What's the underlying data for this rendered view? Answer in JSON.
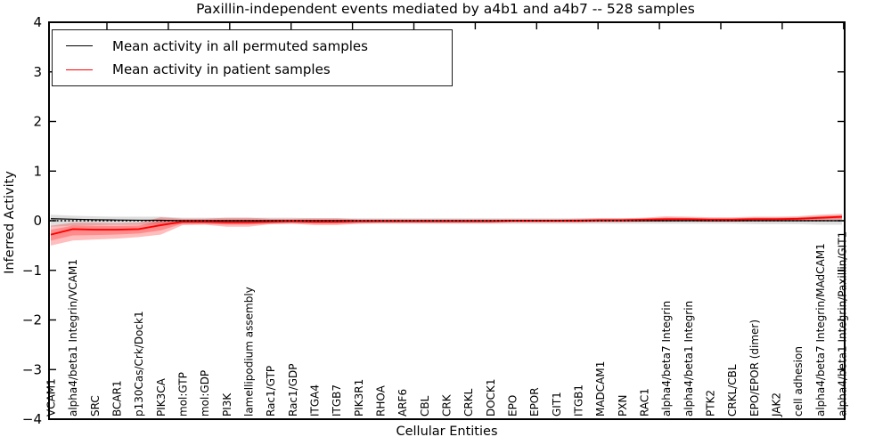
{
  "chart_data": {
    "type": "line",
    "title": "Paxillin-independent events mediated by a4b1 and a4b7 -- 528 samples",
    "xlabel": "Cellular Entities",
    "ylabel": "Inferred Activity",
    "ylim": [
      -4,
      4
    ],
    "grid": false,
    "legend_position": "upper left",
    "legend": [
      {
        "label": "Mean activity in all permuted samples",
        "color": "#000000"
      },
      {
        "label": "Mean activity in patient samples",
        "color": "#ff0000"
      }
    ],
    "colors": {
      "patient_line": "#ff0000",
      "patient_band_fill": "rgba(255,0,0,0.26)",
      "permuted_line": "#000000",
      "permuted_band_fill": "rgba(0,0,0,0.13)",
      "zero_reference_line": "#000000"
    },
    "yticks": [
      {
        "v": 4,
        "label": "4"
      },
      {
        "v": 3,
        "label": "3"
      },
      {
        "v": 2,
        "label": "2"
      },
      {
        "v": 1,
        "label": "1"
      },
      {
        "v": 0,
        "label": "0"
      },
      {
        "v": -1,
        "label": "−1"
      },
      {
        "v": -2,
        "label": "−2"
      },
      {
        "v": -3,
        "label": "−3"
      },
      {
        "v": -4,
        "label": "−4"
      }
    ],
    "categories": [
      "VCAM1",
      "alpha4/beta1 Integrin/VCAM1",
      "SRC",
      "BCAR1",
      "p130Cas/Crk/Dock1",
      "PIK3CA",
      "mol:GTP",
      "mol:GDP",
      "PI3K",
      "lamellipodium assembly",
      "Rac1/GTP",
      "Rac1/GDP",
      "ITGA4",
      "ITGB7",
      "PIK3R1",
      "RHOA",
      "ARF6",
      "CBL",
      "CRK",
      "CRKL",
      "DOCK1",
      "EPO",
      "EPOR",
      "GIT1",
      "ITGB1",
      "MADCAM1",
      "PXN",
      "RAC1",
      "alpha4/beta7 Integrin",
      "alpha4/beta1 Integrin",
      "PTK2",
      "CRKL/CBL",
      "EPO/EPOR (dimer)",
      "JAK2",
      "cell adhesion",
      "alpha4/beta7 Integrin/MAdCAM1",
      "alpha4/beta1 Integrin/Paxillin/GIT1"
    ],
    "series": [
      {
        "name": "Mean activity in patient samples",
        "values": [
          -0.28,
          -0.17,
          -0.18,
          -0.18,
          -0.17,
          -0.09,
          -0.02,
          -0.02,
          -0.03,
          -0.03,
          -0.02,
          -0.01,
          -0.02,
          -0.02,
          -0.01,
          -0.01,
          -0.01,
          -0.01,
          -0.01,
          -0.01,
          -0.01,
          0,
          0,
          0,
          0,
          0.01,
          0.01,
          0.02,
          0.03,
          0.03,
          0.02,
          0.02,
          0.03,
          0.03,
          0.04,
          0.06,
          0.08
        ],
        "band_lo": [
          -0.5,
          -0.4,
          -0.38,
          -0.36,
          -0.33,
          -0.28,
          -0.09,
          -0.08,
          -0.12,
          -0.12,
          -0.07,
          -0.06,
          -0.09,
          -0.09,
          -0.06,
          -0.05,
          -0.05,
          -0.05,
          -0.05,
          -0.05,
          -0.05,
          -0.04,
          -0.04,
          -0.04,
          -0.04,
          -0.03,
          -0.03,
          -0.02,
          -0.02,
          -0.01,
          -0.02,
          -0.02,
          -0.01,
          -0.01,
          0,
          0.01,
          0.02
        ],
        "band_hi": [
          -0.1,
          -0.04,
          -0.04,
          -0.05,
          -0.04,
          0.07,
          0.04,
          0.04,
          0.06,
          0.06,
          0.04,
          0.04,
          0.05,
          0.05,
          0.03,
          0.03,
          0.03,
          0.03,
          0.03,
          0.03,
          0.03,
          0.03,
          0.03,
          0.03,
          0.04,
          0.05,
          0.05,
          0.06,
          0.09,
          0.08,
          0.07,
          0.07,
          0.08,
          0.08,
          0.09,
          0.12,
          0.14
        ]
      },
      {
        "name": "Mean activity in all permuted samples",
        "values": [
          0.04,
          0.03,
          0.02,
          0.015,
          0.01,
          0.01,
          0,
          0,
          0,
          0,
          0,
          0,
          0,
          0,
          0,
          0,
          0,
          0,
          0,
          0,
          0,
          0,
          0,
          0,
          0,
          0,
          0,
          0,
          0,
          0,
          0,
          0,
          0,
          0,
          0,
          0,
          0
        ],
        "band_lo": [
          -0.12,
          -0.1,
          -0.09,
          -0.08,
          -0.08,
          -0.08,
          -0.07,
          -0.07,
          -0.07,
          -0.07,
          -0.07,
          -0.06,
          -0.06,
          -0.06,
          -0.06,
          -0.06,
          -0.06,
          -0.06,
          -0.06,
          -0.06,
          -0.06,
          -0.06,
          -0.06,
          -0.06,
          -0.06,
          -0.06,
          -0.06,
          -0.06,
          -0.06,
          -0.06,
          -0.06,
          -0.06,
          -0.07,
          -0.07,
          -0.07,
          -0.08,
          -0.08
        ],
        "band_hi": [
          0.12,
          0.1,
          0.09,
          0.08,
          0.08,
          0.08,
          0.06,
          0.06,
          0.06,
          0.06,
          0.06,
          0.06,
          0.05,
          0.05,
          0.05,
          0.05,
          0.05,
          0.05,
          0.05,
          0.05,
          0.05,
          0.05,
          0.05,
          0.05,
          0.05,
          0.05,
          0.05,
          0.05,
          0.05,
          0.05,
          0.05,
          0.05,
          0.06,
          0.06,
          0.06,
          0.06,
          0.06
        ]
      }
    ],
    "zero_line": 0
  }
}
